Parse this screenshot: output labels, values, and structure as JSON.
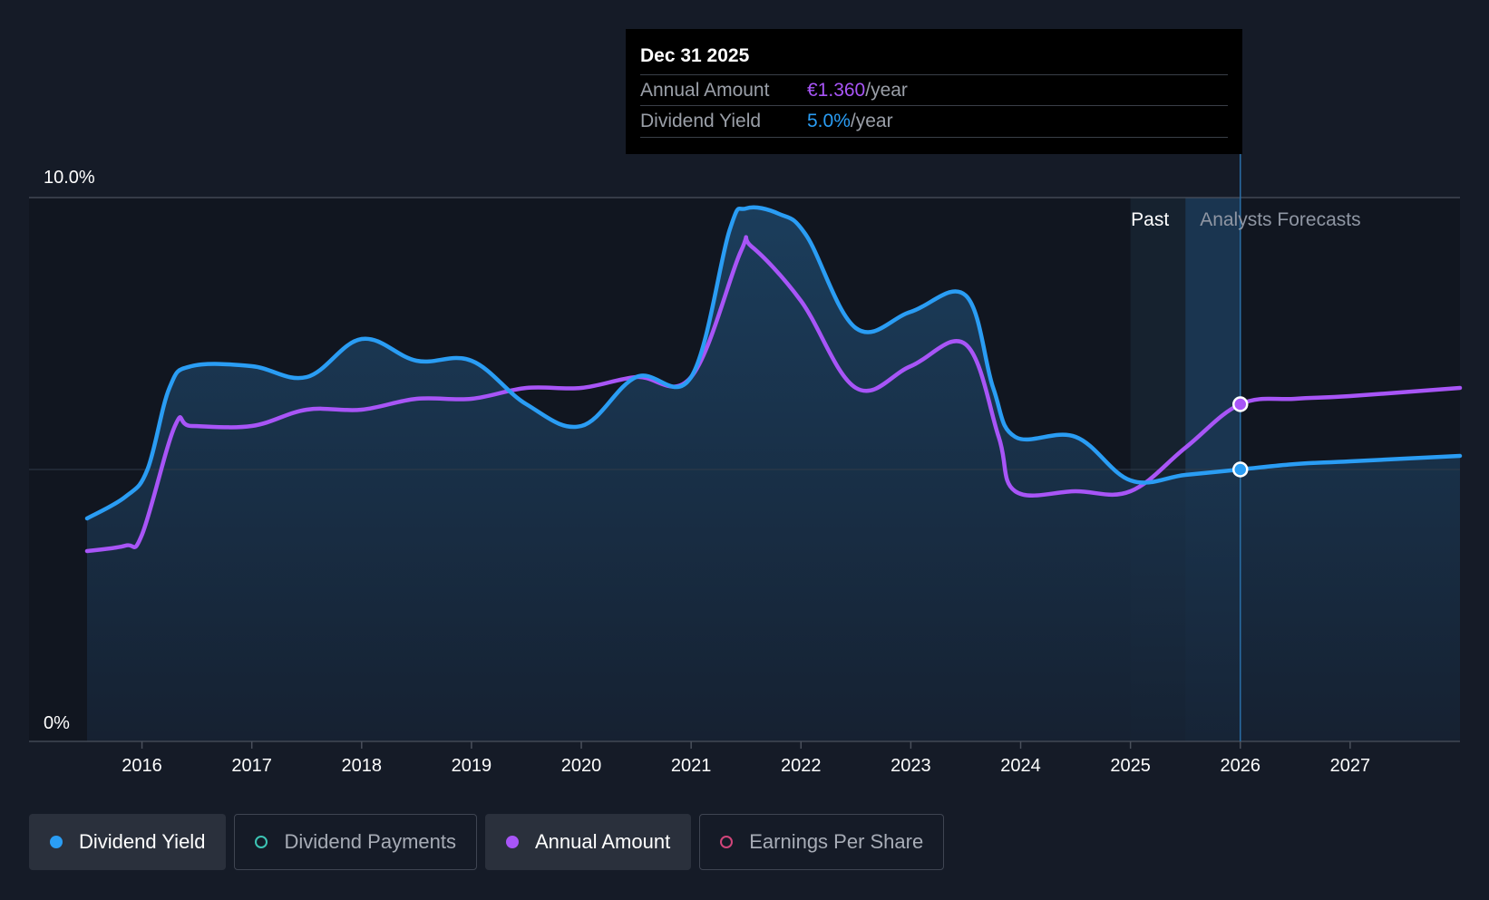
{
  "tooltip": {
    "date": "Dec 31 2025",
    "rows": [
      {
        "label": "Annual Amount",
        "value": "€1.360",
        "unit": "/year",
        "color": "#a855f7"
      },
      {
        "label": "Dividend Yield",
        "value": "5.0%",
        "unit": "/year",
        "color": "#2a9df4"
      }
    ]
  },
  "legend": [
    {
      "label": "Dividend Yield",
      "active": true,
      "color": "#2a9df4",
      "hollow": false
    },
    {
      "label": "Dividend Payments",
      "active": false,
      "color": "#3cc4b4",
      "hollow": true
    },
    {
      "label": "Annual Amount",
      "active": true,
      "color": "#a855f7",
      "hollow": false
    },
    {
      "label": "Earnings Per Share",
      "active": false,
      "color": "#d1457a",
      "hollow": true
    }
  ],
  "chart_data": {
    "type": "line",
    "y_axis": {
      "ticks": [
        "10.0%",
        "0%"
      ],
      "ylim": [
        0,
        10
      ]
    },
    "x_axis": {
      "ticks": [
        "2016",
        "2017",
        "2018",
        "2019",
        "2020",
        "2021",
        "2022",
        "2023",
        "2024",
        "2025",
        "2026",
        "2027"
      ],
      "xlim": [
        2015.5,
        2028.0
      ]
    },
    "regions": {
      "past_label": "Past",
      "forecast_label": "Analysts Forecasts",
      "past_start": 2025.0,
      "forecast_start": 2025.5,
      "marker_x": 2026.0
    },
    "series": [
      {
        "name": "Dividend Yield",
        "color": "#2a9df4",
        "filled": true,
        "points": [
          [
            2015.5,
            4.1
          ],
          [
            2015.85,
            4.5
          ],
          [
            2016.05,
            5.0
          ],
          [
            2016.25,
            6.5
          ],
          [
            2016.45,
            6.9
          ],
          [
            2017.0,
            6.9
          ],
          [
            2017.5,
            6.7
          ],
          [
            2018.0,
            7.4
          ],
          [
            2018.5,
            7.0
          ],
          [
            2019.0,
            7.0
          ],
          [
            2019.5,
            6.2
          ],
          [
            2020.0,
            5.8
          ],
          [
            2020.5,
            6.7
          ],
          [
            2021.0,
            6.7
          ],
          [
            2021.35,
            9.4
          ],
          [
            2021.5,
            9.8
          ],
          [
            2021.8,
            9.7
          ],
          [
            2022.05,
            9.3
          ],
          [
            2022.5,
            7.6
          ],
          [
            2023.0,
            7.9
          ],
          [
            2023.5,
            8.2
          ],
          [
            2023.75,
            6.5
          ],
          [
            2023.95,
            5.6
          ],
          [
            2024.5,
            5.6
          ],
          [
            2025.0,
            4.8
          ],
          [
            2025.5,
            4.9
          ],
          [
            2026.0,
            5.0
          ],
          [
            2026.5,
            5.1
          ],
          [
            2027.0,
            5.15
          ],
          [
            2028.0,
            5.25
          ]
        ]
      },
      {
        "name": "Annual Amount",
        "color": "#a855f7",
        "filled": false,
        "points": [
          [
            2015.5,
            3.5
          ],
          [
            2015.85,
            3.6
          ],
          [
            2016.0,
            3.8
          ],
          [
            2016.3,
            5.8
          ],
          [
            2016.45,
            5.8
          ],
          [
            2017.0,
            5.8
          ],
          [
            2017.5,
            6.1
          ],
          [
            2018.0,
            6.1
          ],
          [
            2018.5,
            6.3
          ],
          [
            2019.0,
            6.3
          ],
          [
            2019.5,
            6.5
          ],
          [
            2020.0,
            6.5
          ],
          [
            2020.5,
            6.7
          ],
          [
            2021.0,
            6.7
          ],
          [
            2021.45,
            9.0
          ],
          [
            2021.55,
            9.1
          ],
          [
            2022.0,
            8.1
          ],
          [
            2022.5,
            6.5
          ],
          [
            2023.0,
            6.9
          ],
          [
            2023.5,
            7.3
          ],
          [
            2023.8,
            5.6
          ],
          [
            2023.95,
            4.6
          ],
          [
            2024.5,
            4.6
          ],
          [
            2025.0,
            4.6
          ],
          [
            2025.5,
            5.4
          ],
          [
            2026.0,
            6.2
          ],
          [
            2026.5,
            6.3
          ],
          [
            2027.0,
            6.35
          ],
          [
            2028.0,
            6.5
          ]
        ]
      }
    ]
  }
}
